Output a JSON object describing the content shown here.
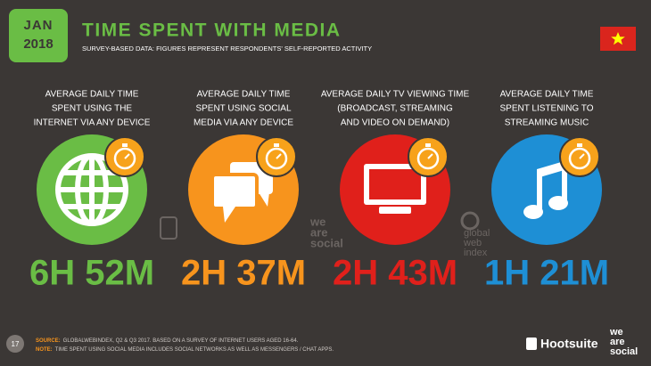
{
  "header": {
    "month": "JAN",
    "year": "2018",
    "title": "TIME SPENT WITH MEDIA",
    "subtitle": "SURVEY-BASED DATA: FIGURES REPRESENT RESPONDENTS' SELF-REPORTED ACTIVITY"
  },
  "items": [
    {
      "label": [
        "AVERAGE DAILY TIME",
        "SPENT USING THE",
        "INTERNET VIA ANY DEVICE"
      ],
      "value": "6H 52M"
    },
    {
      "label": [
        "AVERAGE DAILY TIME",
        "SPENT USING SOCIAL",
        "MEDIA VIA ANY DEVICE"
      ],
      "value": "2H 37M"
    },
    {
      "label": [
        "AVERAGE DAILY TV VIEWING TIME",
        "(BROADCAST, STREAMING",
        "AND VIDEO ON DEMAND)"
      ],
      "value": "2H 43M"
    },
    {
      "label": [
        "AVERAGE DAILY TIME",
        "SPENT LISTENING TO",
        "STREAMING MUSIC"
      ],
      "value": "1H 21M"
    }
  ],
  "watermarks": {
    "we_are_social": [
      "we",
      "are",
      "social"
    ],
    "global_web_index": [
      "global",
      "web",
      "index"
    ]
  },
  "footer": {
    "page": "17",
    "source_label": "SOURCE:",
    "source_text": "GLOBALWEBINDEX, Q2 & Q3 2017. BASED ON A SURVEY OF INTERNET USERS AGED 16-64.",
    "note_label": "NOTE:",
    "note_text": "TIME SPENT USING SOCIAL MEDIA INCLUDES SOCIAL NETWORKS AS WELL AS MESSENGERS / CHAT APPS.",
    "brand_hootsuite": "Hootsuite",
    "brand_was": [
      "we",
      "are",
      "social"
    ]
  }
}
